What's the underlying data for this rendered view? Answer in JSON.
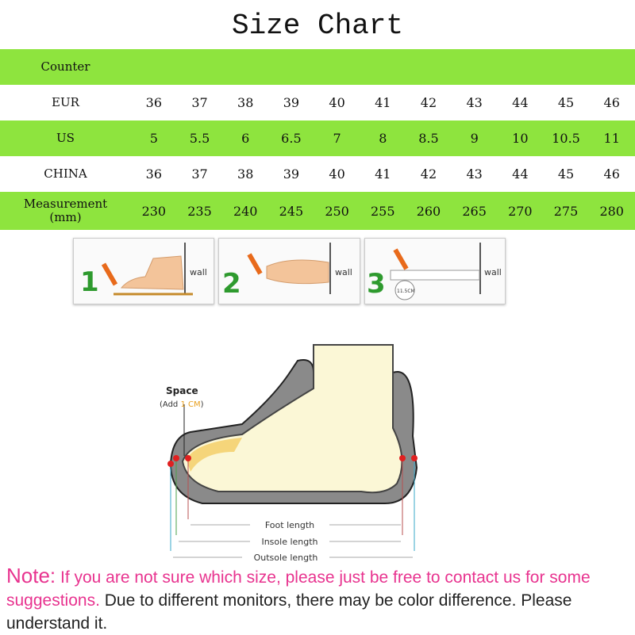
{
  "title": "Size Chart",
  "table": {
    "header": "Counter",
    "rows": [
      {
        "label": "EUR",
        "values": [
          "36",
          "37",
          "38",
          "39",
          "40",
          "41",
          "42",
          "43",
          "44",
          "45",
          "46"
        ]
      },
      {
        "label": "US",
        "values": [
          "5",
          "5.5",
          "6",
          "6.5",
          "7",
          "8",
          "8.5",
          "9",
          "10",
          "10.5",
          "11"
        ]
      },
      {
        "label": "CHINA",
        "values": [
          "36",
          "37",
          "38",
          "39",
          "40",
          "41",
          "42",
          "43",
          "44",
          "45",
          "46"
        ]
      },
      {
        "label": "Measurement",
        "label2": "(mm)",
        "values": [
          "230",
          "235",
          "240",
          "245",
          "250",
          "255",
          "260",
          "265",
          "270",
          "275",
          "280"
        ]
      }
    ]
  },
  "steps": [
    {
      "number": "1",
      "wall": "wall"
    },
    {
      "number": "2",
      "wall": "wall"
    },
    {
      "number": "3",
      "wall": "wall",
      "badge": "11.5CM"
    }
  ],
  "diagram": {
    "space": "Space",
    "add_prefix": "(Add ",
    "add_value": "1 CM",
    "add_suffix": ")",
    "foot_length": "Foot length",
    "insole_length": "Insole length",
    "outsole_length": "Outsole length"
  },
  "note": {
    "head": "Note:",
    "pink": " If you are not sure which size, please just be free to contact us for some suggestions.",
    "black": " Due to different monitors, there may be color difference. Please understand it."
  },
  "colors": {
    "green": "#8ee43e",
    "pink": "#e8338f",
    "sole": "#8a8a8a",
    "foot": "#fbf7d6"
  }
}
